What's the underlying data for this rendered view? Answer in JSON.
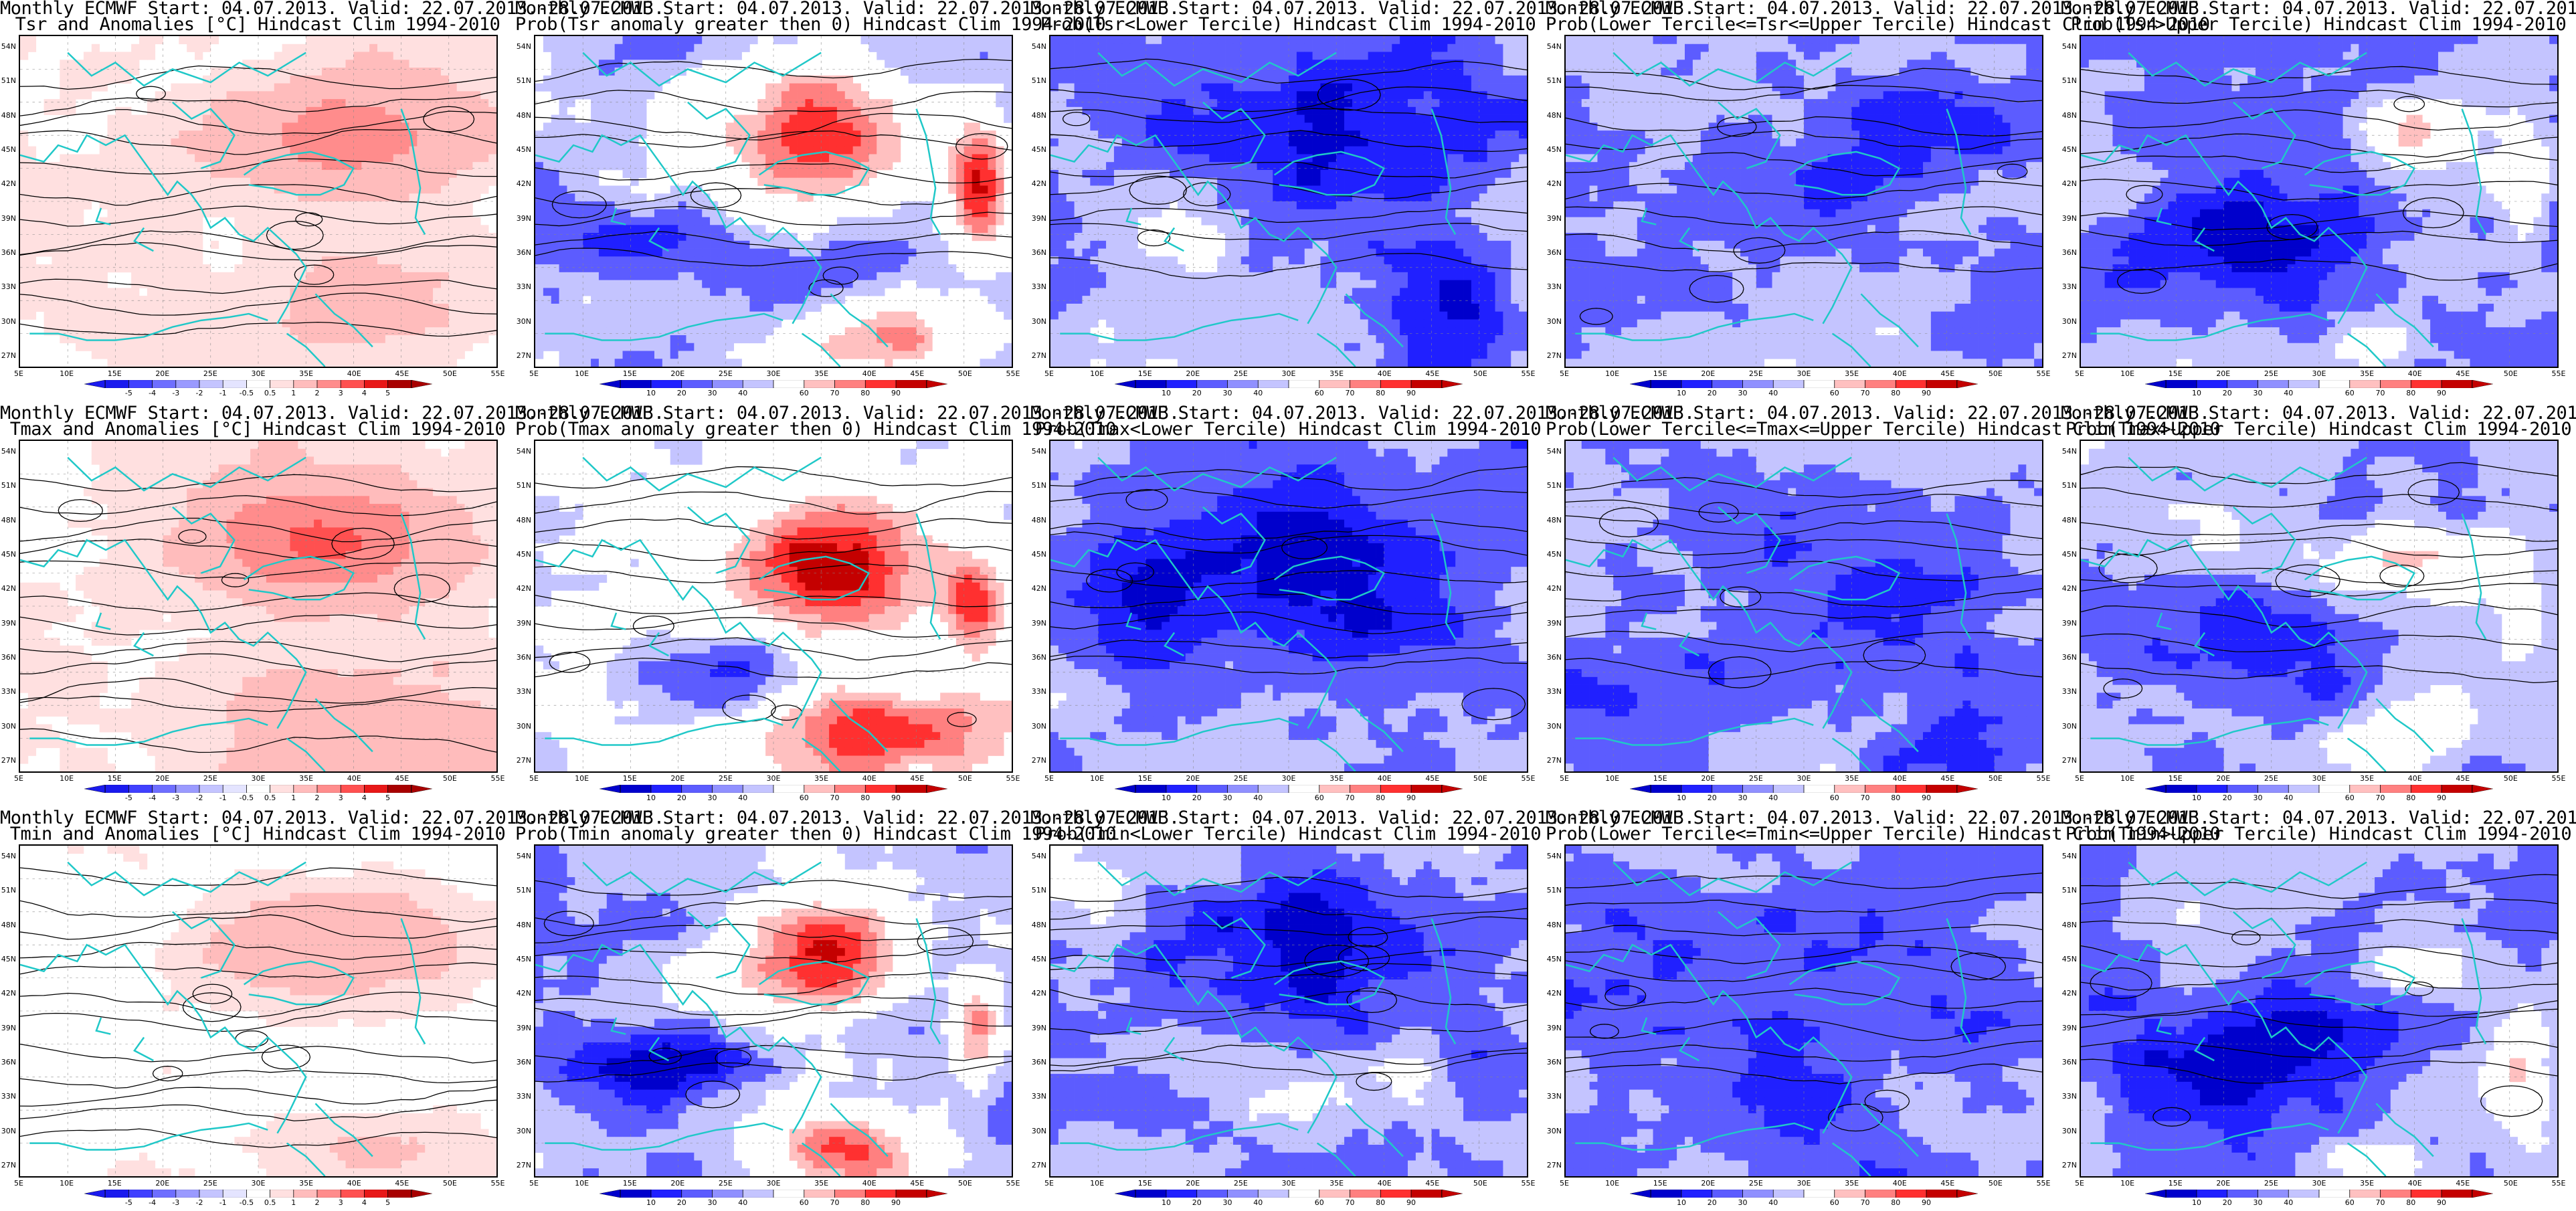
{
  "header_prefix": "Monthly ECMWF Start: 04.07.2013. Valid: 22.07.2013.-28.07.2013.",
  "colors": {
    "anom": [
      "#1a1aee",
      "#4040ff",
      "#6e6eff",
      "#9a9aff",
      "#c4c4ff",
      "#e4e4ff",
      "#ffffff",
      "#ffe0e0",
      "#ffbcbc",
      "#ff8c8c",
      "#ff5050",
      "#e81818",
      "#a80000"
    ],
    "prob": [
      "#0000cc",
      "#2020ff",
      "#5c5cff",
      "#9090ff",
      "#c4c4ff",
      "#ffffff",
      "#ffc0c0",
      "#ff8080",
      "#ff3030",
      "#c40000"
    ],
    "coast": "#20c8c8",
    "contour": "#000000"
  },
  "axes": {
    "lat_labels": [
      "54N",
      "51N",
      "48N",
      "45N",
      "42N",
      "39N",
      "36N",
      "33N",
      "30N",
      "27N"
    ],
    "lon_labels": [
      "5E",
      "10E",
      "15E",
      "20E",
      "25E",
      "30E",
      "35E",
      "40E",
      "45E",
      "50E",
      "55E"
    ]
  },
  "colorbars": {
    "anom": [
      "-5",
      "-4",
      "-3",
      "-2",
      "-1",
      "-0.5",
      "0.5",
      "1",
      "2",
      "3",
      "4",
      "5"
    ],
    "prob": [
      "10",
      "20",
      "30",
      "40",
      "60",
      "70",
      "80",
      "90"
    ]
  },
  "panels": [
    {
      "title": "Tsr and Anomalies [°C] Hindcast Clim 1994-2010",
      "kind": "anom",
      "pattern": "anom_tsr"
    },
    {
      "title": "Prob(Tsr anomaly greater then 0) Hindcast Clim 1994-2010",
      "kind": "prob",
      "pattern": "warm"
    },
    {
      "title": "Prob(Tsr<Lower Tercile) Hindcast Clim 1994-2010",
      "kind": "prob",
      "pattern": "lower"
    },
    {
      "title": "Prob(Lower Tercile<=Tsr<=Upper Tercile) Hindcast Clim 1994-2010",
      "kind": "prob",
      "pattern": "middle"
    },
    {
      "title": "Prob(Tsr>Upper Tercile) Hindcast Clim 1994-2010",
      "kind": "prob",
      "pattern": "upper"
    },
    {
      "title": "Tmax and Anomalies [°C] Hindcast Clim 1994-2010",
      "kind": "anom",
      "pattern": "anom_tmax"
    },
    {
      "title": "Prob(Tmax anomaly greater then 0) Hindcast Clim 1994-2010",
      "kind": "prob",
      "pattern": "warm2"
    },
    {
      "title": "Prob(Tmax<Lower Tercile) Hindcast Clim 1994-2010",
      "kind": "prob",
      "pattern": "lower2"
    },
    {
      "title": "Prob(Lower Tercile<=Tmax<=Upper Tercile) Hindcast Clim 1994-2010",
      "kind": "prob",
      "pattern": "middle"
    },
    {
      "title": "Prob(Tmax>Upper Tercile) Hindcast Clim 1994-2010",
      "kind": "prob",
      "pattern": "upper2"
    },
    {
      "title": "Tmin and Anomalies [°C] Hindcast Clim 1994-2010",
      "kind": "anom",
      "pattern": "anom_tmin"
    },
    {
      "title": "Prob(Tmin anomaly greater then 0) Hindcast Clim 1994-2010",
      "kind": "prob",
      "pattern": "warm3"
    },
    {
      "title": "Prob(Tmin<Lower Tercile) Hindcast Clim 1994-2010",
      "kind": "prob",
      "pattern": "lower3"
    },
    {
      "title": "Prob(Lower Tercile<=Tmin<=Upper Tercile) Hindcast Clim 1994-2010",
      "kind": "prob",
      "pattern": "middle2"
    },
    {
      "title": "Prob(Tmin>Upper Tercile) Hindcast Clim 1994-2010",
      "kind": "prob",
      "pattern": "upper3"
    }
  ]
}
